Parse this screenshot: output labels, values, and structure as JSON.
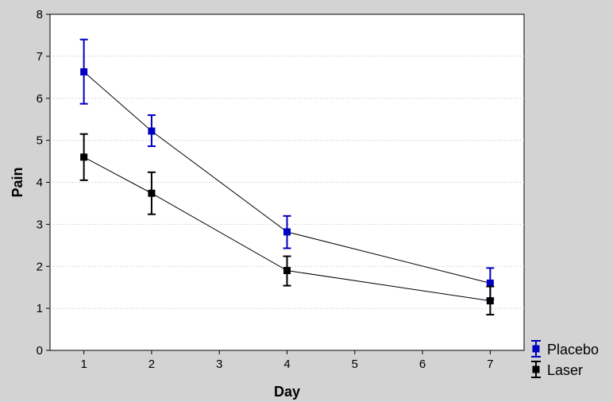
{
  "chart_data": {
    "type": "line",
    "title": "",
    "xlabel": "Day",
    "ylabel": "Pain",
    "xlim": [
      0.5,
      7.5
    ],
    "ylim": [
      0,
      8
    ],
    "x_ticks": [
      1,
      2,
      3,
      4,
      5,
      6,
      7
    ],
    "y_ticks": [
      0,
      1,
      2,
      3,
      4,
      5,
      6,
      7,
      8
    ],
    "grid": "horizontal",
    "legend_position": "right-bottom",
    "colors": {
      "panel_bg": "#d3d3d3",
      "plot_bg": "#ffffff"
    },
    "series": [
      {
        "name": "Placebo",
        "color": "#0000c0",
        "x": [
          1,
          2,
          4,
          7
        ],
        "y": [
          6.63,
          5.22,
          2.82,
          1.6
        ],
        "err_low": [
          5.87,
          4.86,
          2.43,
          1.22
        ],
        "err_high": [
          7.4,
          5.6,
          3.2,
          1.96
        ]
      },
      {
        "name": "Laser",
        "color": "#000000",
        "x": [
          1,
          2,
          4,
          7
        ],
        "y": [
          4.6,
          3.74,
          1.9,
          1.18
        ],
        "err_low": [
          4.05,
          3.24,
          1.54,
          0.85
        ],
        "err_high": [
          5.15,
          4.24,
          2.24,
          1.52
        ]
      }
    ]
  }
}
